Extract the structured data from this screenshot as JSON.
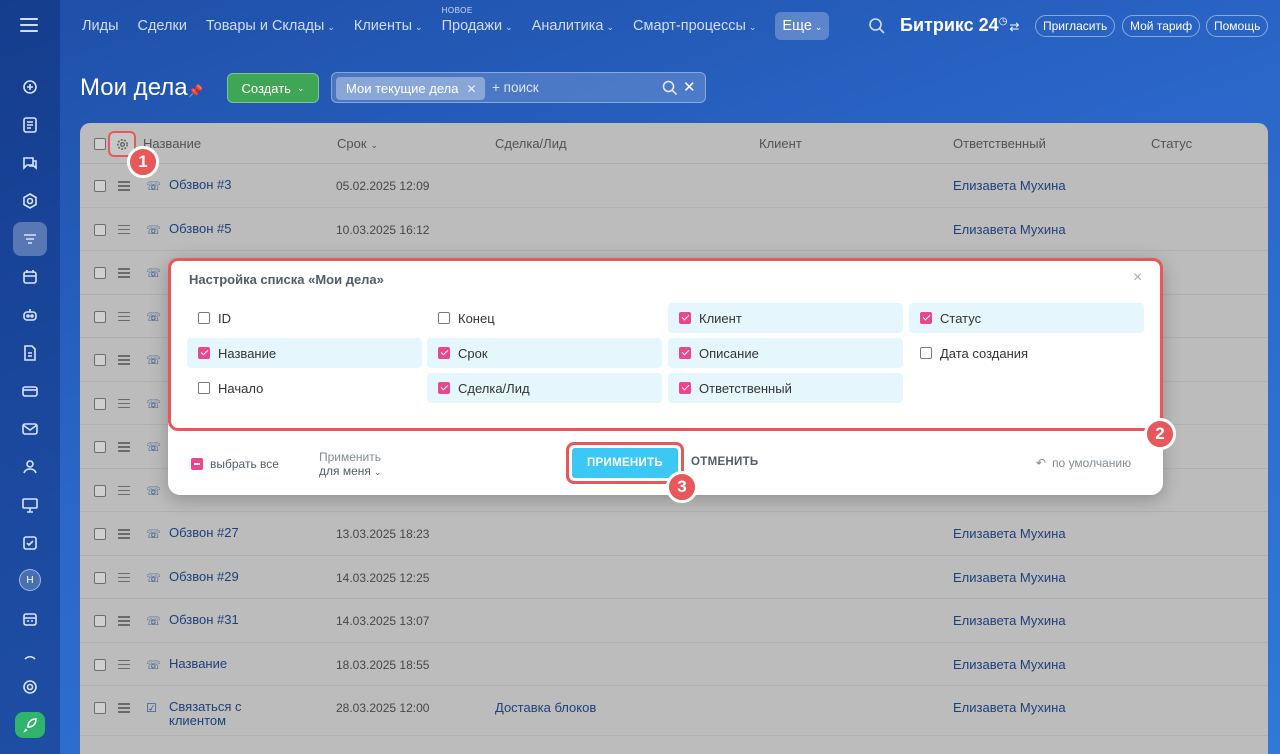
{
  "nav": {
    "items": [
      {
        "label": "Лиды",
        "chevron": false
      },
      {
        "label": "Сделки",
        "chevron": false
      },
      {
        "label": "Товары и Склады",
        "chevron": true
      },
      {
        "label": "Клиенты",
        "chevron": true
      },
      {
        "label": "Продажи",
        "chevron": true,
        "badge": "НОВОЕ"
      },
      {
        "label": "Аналитика",
        "chevron": true
      },
      {
        "label": "Смарт-процессы",
        "chevron": true
      }
    ],
    "more_label": "Еще",
    "brand": "Битрикс 24",
    "invite_label": "Пригласить",
    "tariff_label": "Мой тариф",
    "help_label": "Помощь"
  },
  "rail": {
    "avatar_letter": "Н"
  },
  "header": {
    "title": "Мои дела",
    "create_label": "Создать",
    "filter_chip": "Мои текущие дела",
    "search_placeholder": "+ поиск"
  },
  "grid": {
    "columns": [
      "Название",
      "Срок",
      "Сделка/Лид",
      "Клиент",
      "Ответственный",
      "Статус"
    ],
    "rows": [
      {
        "type": "call",
        "name": "Обзвон #3",
        "date": "05.02.2025 12:09",
        "deal": "",
        "responsible": "Елизавета Мухина"
      },
      {
        "type": "call",
        "name": "Обзвон #5",
        "date": "10.03.2025 16:12",
        "deal": "",
        "responsible": "Елизавета Мухина"
      },
      {
        "type": "call",
        "name": "",
        "date": "",
        "deal": "",
        "responsible": ""
      },
      {
        "type": "call",
        "name": "",
        "date": "",
        "deal": "",
        "responsible": ""
      },
      {
        "type": "call",
        "name": "",
        "date": "",
        "deal": "",
        "responsible": ""
      },
      {
        "type": "call",
        "name": "",
        "date": "",
        "deal": "",
        "responsible": ""
      },
      {
        "type": "call",
        "name": "",
        "date": "",
        "deal": "",
        "responsible": ""
      },
      {
        "type": "call",
        "name": "",
        "date": "",
        "deal": "",
        "responsible": ""
      },
      {
        "type": "call",
        "name": "Обзвон #27",
        "date": "13.03.2025 18:23",
        "deal": "",
        "responsible": "Елизавета Мухина"
      },
      {
        "type": "call",
        "name": "Обзвон #29",
        "date": "14.03.2025 12:25",
        "deal": "",
        "responsible": "Елизавета Мухина"
      },
      {
        "type": "call",
        "name": "Обзвон #31",
        "date": "14.03.2025 13:07",
        "deal": "",
        "responsible": "Елизавета Мухина"
      },
      {
        "type": "call",
        "name": "Название",
        "date": "18.03.2025 18:55",
        "deal": "",
        "responsible": "Елизавета Мухина"
      },
      {
        "type": "task",
        "name": "Связаться с клиентом",
        "date": "28.03.2025 12:00",
        "deal": "Доставка блоков",
        "responsible": "Елизавета Мухина"
      }
    ]
  },
  "steps": [
    "1",
    "2",
    "3"
  ],
  "dialog": {
    "title": "Настройка списка «Мои дела»",
    "close": "×",
    "options": [
      {
        "label": "ID",
        "checked": false
      },
      {
        "label": "Конец",
        "checked": false
      },
      {
        "label": "Клиент",
        "checked": true
      },
      {
        "label": "Статус",
        "checked": true
      },
      {
        "label": "Название",
        "checked": true
      },
      {
        "label": "Срок",
        "checked": true
      },
      {
        "label": "Описание",
        "checked": true
      },
      {
        "label": "Дата создания",
        "checked": false
      },
      {
        "label": "Начало",
        "checked": false
      },
      {
        "label": "Сделка/Лид",
        "checked": true
      },
      {
        "label": "Ответственный",
        "checked": true
      }
    ],
    "select_all": "выбрать все",
    "apply_for_label": "Применить",
    "apply_for_value": "для меня",
    "apply_label": "ПРИМЕНИТЬ",
    "cancel_label": "ОТМЕНИТЬ",
    "reset_label": "по умолчанию"
  },
  "colors": {
    "accent_red": "#e8585a",
    "checkbox_pink": "#e9488d",
    "apply_blue": "#3bc8f5",
    "create_green": "#3ea655"
  }
}
